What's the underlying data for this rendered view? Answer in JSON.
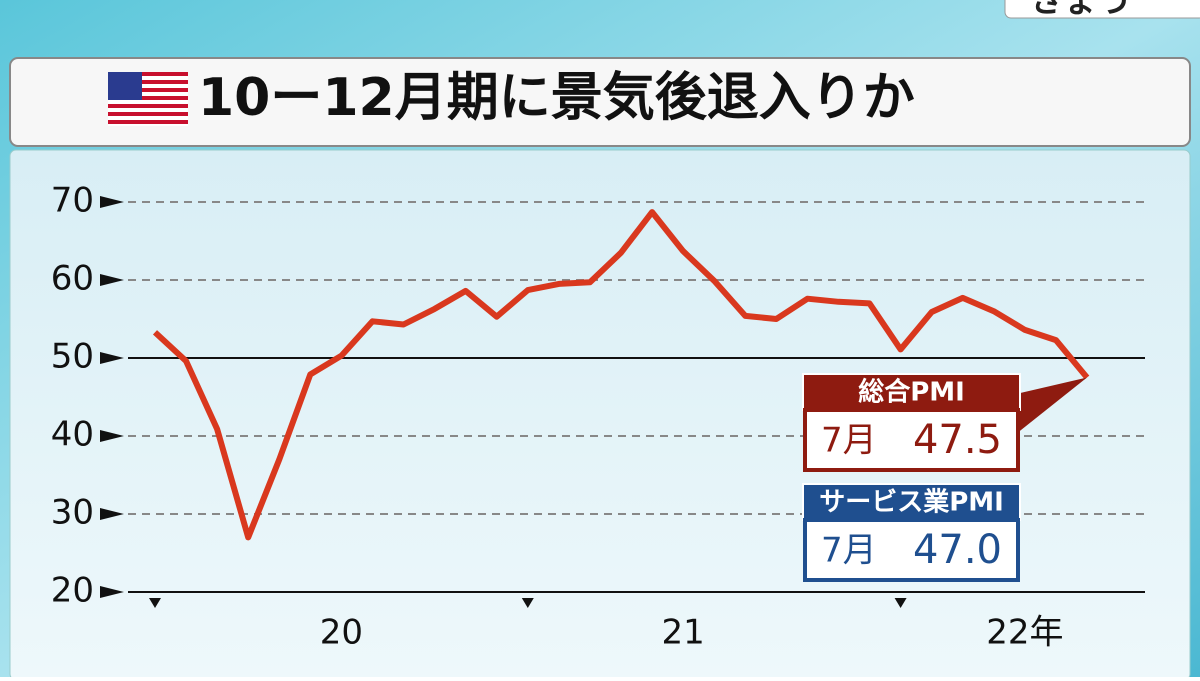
{
  "top_tab": "きょう",
  "chart_data": {
    "type": "line",
    "title": "10ー12月期に景気後退入りか",
    "categories": [
      null,
      null,
      null,
      null,
      null,
      null,
      "20",
      null,
      null,
      null,
      null,
      null,
      null,
      null,
      null,
      null,
      null,
      "21",
      null,
      null,
      null,
      null,
      null,
      null,
      null,
      null,
      null,
      null,
      "22年",
      null,
      null
    ],
    "series": [
      {
        "name": "総合PMI",
        "color": "#d9381e",
        "values": [
          53.3,
          49.6,
          40.9,
          27.0,
          37.0,
          47.9,
          50.3,
          54.7,
          54.3,
          56.3,
          58.6,
          55.3,
          58.7,
          59.5,
          59.7,
          63.5,
          68.7,
          63.7,
          59.9,
          55.4,
          55.0,
          57.6,
          57.2,
          57.0,
          51.1,
          55.9,
          57.7,
          56.0,
          53.6,
          52.3,
          47.5
        ]
      }
    ],
    "ylim": [
      20,
      70
    ],
    "yticks": [
      20,
      30,
      40,
      50,
      60,
      70
    ],
    "grid": true,
    "reference_line": 50,
    "callouts": [
      {
        "label": "総合PMI",
        "month": "7月",
        "value": 47.5,
        "color": "#8e1b10"
      },
      {
        "label": "サービス業PMI",
        "month": "7月",
        "value": {
          "value": 47,
          "label": "47.0"
        },
        "color": "#1f4f8f"
      }
    ]
  }
}
